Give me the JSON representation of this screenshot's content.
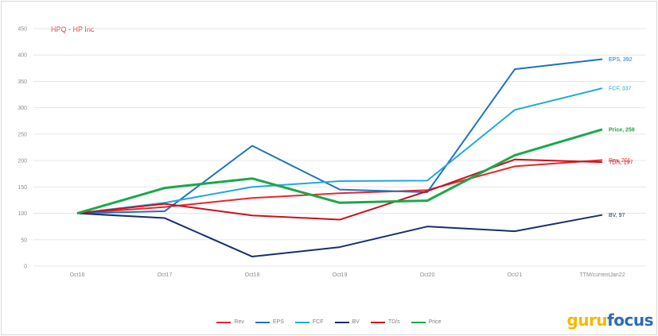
{
  "title": "HPQ - HP Inc",
  "logo": {
    "part1": "guru",
    "part2": "focus",
    "colors": {
      "guru": "#f5b800",
      "focus": "#2a6db5"
    }
  },
  "chart_data": {
    "type": "line",
    "title": "HPQ - HP Inc",
    "xlabel": "",
    "ylabel": "",
    "categories": [
      "Oct16",
      "Oct17",
      "Oct18",
      "Oct19",
      "Oct20",
      "Oct21",
      "TTM/currentJan22"
    ],
    "yticks": [
      0,
      50,
      100,
      150,
      200,
      250,
      300,
      350,
      400,
      450
    ],
    "ylim": [
      0,
      450
    ],
    "grid": true,
    "legend_position": "bottom",
    "series": [
      {
        "name": "Rev",
        "color": "#e8262d",
        "width": 2,
        "values": [
          100,
          112,
          129,
          138,
          144,
          189,
          201
        ],
        "end_label": "Rev, 201"
      },
      {
        "name": "EPS",
        "color": "#1e73be",
        "width": 2,
        "values": [
          100,
          104,
          228,
          145,
          140,
          373,
          392
        ],
        "end_label": "EPS, 392"
      },
      {
        "name": "FCF",
        "color": "#1fa8e0",
        "width": 2,
        "values": [
          100,
          120,
          150,
          161,
          162,
          296,
          337
        ],
        "end_label": "FCF, 337"
      },
      {
        "name": "BV",
        "color": "#1a2f6b",
        "width": 2,
        "values": [
          100,
          91,
          18,
          36,
          75,
          66,
          97
        ],
        "end_label": "BV, 97"
      },
      {
        "name": "TD/s",
        "color": "#c8101e",
        "width": 2,
        "values": [
          100,
          118,
          96,
          88,
          142,
          202,
          197
        ],
        "end_label": "TD/s, 197"
      },
      {
        "name": "Price",
        "color": "#1aa84a",
        "width": 3,
        "values": [
          100,
          148,
          166,
          120,
          124,
          210,
          259
        ],
        "end_label": "Price, 259"
      }
    ]
  }
}
